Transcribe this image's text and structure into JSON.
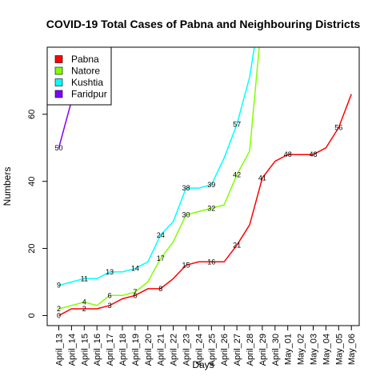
{
  "chart_data": {
    "type": "line",
    "title": "COVID-19 Total Cases of Pabna and Neighbouring Districts",
    "xlabel": "Days",
    "ylabel": "Numbers",
    "ylim": [
      -3,
      80
    ],
    "yticks": [
      0,
      20,
      40,
      60
    ],
    "grid": false,
    "legend_position": "top-left",
    "categories": [
      "April_13",
      "April_14",
      "April_15",
      "April_16",
      "April_17",
      "April_18",
      "April_19",
      "April_20",
      "April_21",
      "April_22",
      "April_23",
      "April_24",
      "April_25",
      "April_26",
      "April_27",
      "April_28",
      "April_29",
      "April_30",
      "May_01",
      "May_02",
      "May_03",
      "May_04",
      "May_05",
      "May_06"
    ],
    "series": [
      {
        "name": "Pabna",
        "color": "#ff0000",
        "values": [
          0,
          2,
          2,
          2,
          3,
          5,
          6,
          8,
          8,
          11,
          15,
          16,
          16,
          16,
          21,
          27,
          41,
          46,
          48,
          48,
          48,
          50,
          56,
          66
        ],
        "labels": [
          {
            "i": 0,
            "text": "0"
          },
          {
            "i": 2,
            "text": "2"
          },
          {
            "i": 4,
            "text": "3"
          },
          {
            "i": 6,
            "text": "6"
          },
          {
            "i": 8,
            "text": "8"
          },
          {
            "i": 10,
            "text": "15"
          },
          {
            "i": 12,
            "text": "16"
          },
          {
            "i": 14,
            "text": "21"
          },
          {
            "i": 16,
            "text": "41"
          },
          {
            "i": 18,
            "text": "48"
          },
          {
            "i": 20,
            "text": "48"
          },
          {
            "i": 22,
            "text": "56"
          }
        ]
      },
      {
        "name": "Natore",
        "color": "#80ff00",
        "values": [
          2,
          3,
          4,
          3,
          6,
          6,
          7,
          10,
          17,
          22,
          30,
          31,
          32,
          33,
          42,
          49,
          90,
          null,
          null,
          null,
          null,
          null,
          null,
          null
        ],
        "labels": [
          {
            "i": 0,
            "text": "2"
          },
          {
            "i": 2,
            "text": "4"
          },
          {
            "i": 4,
            "text": "6"
          },
          {
            "i": 6,
            "text": "7"
          },
          {
            "i": 8,
            "text": "17"
          },
          {
            "i": 10,
            "text": "30"
          },
          {
            "i": 12,
            "text": "32"
          },
          {
            "i": 14,
            "text": "42"
          }
        ]
      },
      {
        "name": "Kushtia",
        "color": "#00ffff",
        "values": [
          9,
          10,
          11,
          11,
          13,
          13,
          14,
          16,
          24,
          28,
          38,
          38,
          39,
          47,
          57,
          71,
          95,
          null,
          null,
          null,
          null,
          null,
          null,
          null
        ],
        "labels": [
          {
            "i": 0,
            "text": "9"
          },
          {
            "i": 2,
            "text": "11"
          },
          {
            "i": 4,
            "text": "13"
          },
          {
            "i": 6,
            "text": "14"
          },
          {
            "i": 8,
            "text": "24"
          },
          {
            "i": 10,
            "text": "38"
          },
          {
            "i": 12,
            "text": "39"
          },
          {
            "i": 14,
            "text": "57"
          }
        ]
      },
      {
        "name": "Faridpur",
        "color": "#8000ff",
        "values": [
          50,
          64,
          78,
          null,
          null,
          null,
          null,
          null,
          null,
          null,
          null,
          null,
          null,
          null,
          null,
          null,
          null,
          null,
          null,
          null,
          null,
          null,
          null,
          null
        ],
        "labels": [
          {
            "i": 0,
            "text": "50"
          }
        ]
      }
    ]
  }
}
